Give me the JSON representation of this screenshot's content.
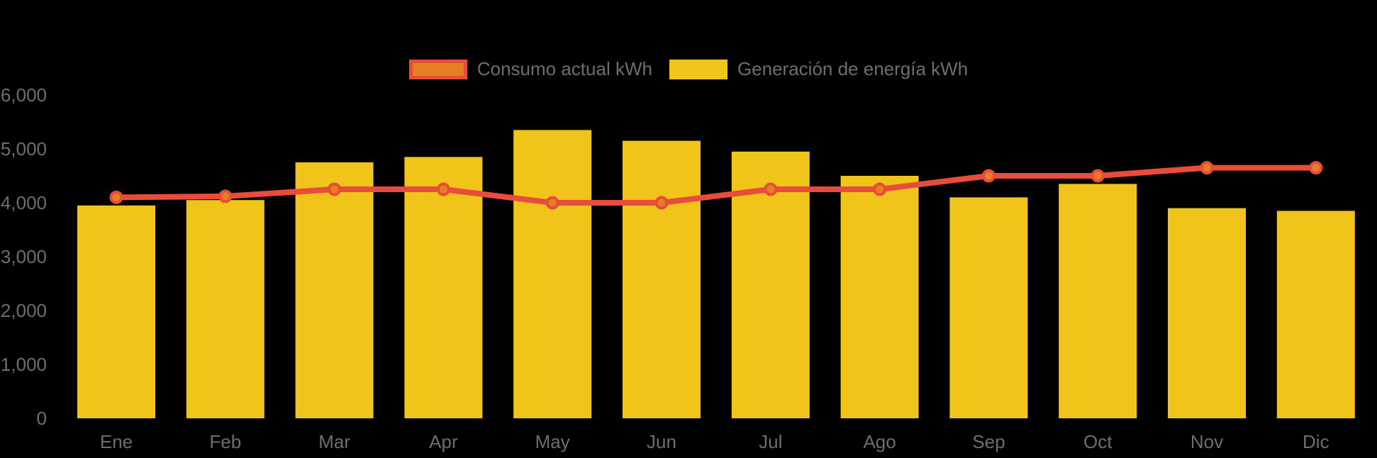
{
  "chart_data": {
    "type": "bar+line",
    "categories": [
      "Ene",
      "Feb",
      "Mar",
      "Apr",
      "May",
      "Jun",
      "Jul",
      "Ago",
      "Sep",
      "Oct",
      "Nov",
      "Dic"
    ],
    "series": [
      {
        "name": "Consumo actual kWh",
        "type": "line",
        "color": "#E74C3C",
        "marker_fill": "#E67E22",
        "values": [
          4100,
          4120,
          4250,
          4250,
          4000,
          4000,
          4250,
          4250,
          4500,
          4500,
          4650,
          4650
        ]
      },
      {
        "name": "Generación de energía kWh",
        "type": "bar",
        "color": "#F0C419",
        "values": [
          3950,
          4050,
          4750,
          4850,
          5350,
          5150,
          4950,
          4500,
          4100,
          4350,
          3900,
          3850
        ]
      }
    ],
    "ylim": [
      0,
      6000
    ],
    "ytick_step": 1000,
    "ytick_labels": [
      "0",
      "1,000",
      "2,000",
      "3,000",
      "4,000",
      "5,000",
      "6,000"
    ],
    "grid": false,
    "legend_position": "top-center",
    "background": "#000000",
    "axis_text_color": "#6E6E6E"
  }
}
